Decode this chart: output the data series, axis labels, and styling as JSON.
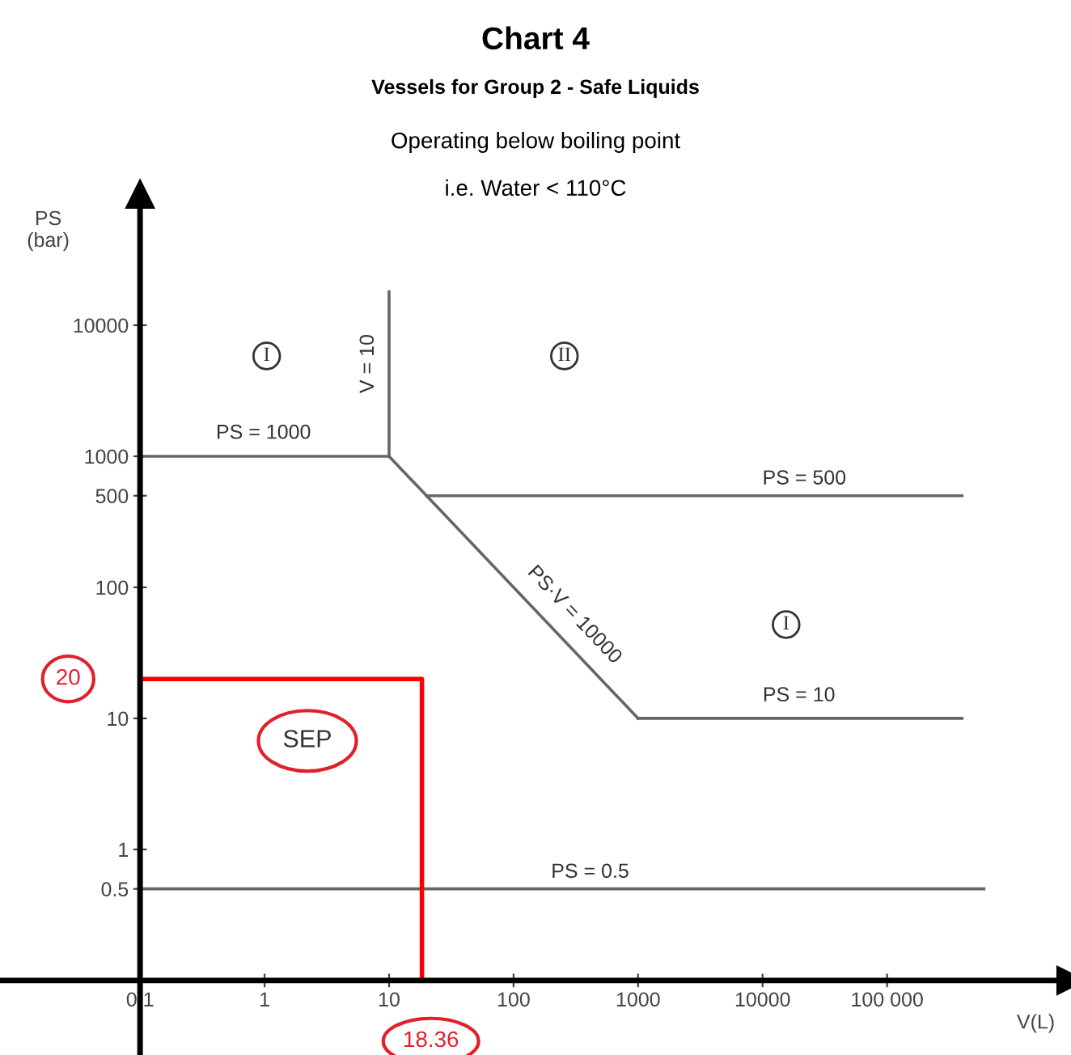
{
  "chart_data": {
    "type": "line",
    "title": "Chart 4",
    "subtitle": "Vessels for Group 2 - Safe Liquids",
    "xlabel": "V(L)",
    "ylabel": "PS\n(bar)",
    "log": "xy",
    "grid": false,
    "marker": "none",
    "line_style": "solid",
    "xlim": [
      0.0075,
      3000000
    ],
    "ylim": [
      0.027,
      100000
    ],
    "xticks": [
      0.1,
      1,
      10,
      100,
      1000,
      10000,
      {
        "value": 100000,
        "label": "100 000"
      }
    ],
    "yticks": [
      0.5,
      1,
      10,
      100,
      500,
      1000,
      10000
    ],
    "series": [
      {
        "color": "#666666",
        "x": [
          0.1,
          10
        ],
        "values": [
          1000,
          1000
        ]
      },
      {
        "color": "#666666",
        "x": [
          10,
          10
        ],
        "values": [
          1000,
          18000
        ]
      },
      {
        "color": "#666666",
        "x": [
          10,
          1000
        ],
        "values": [
          1000,
          10
        ]
      },
      {
        "color": "#666666",
        "x": [
          20,
          400000
        ],
        "values": [
          500,
          500
        ]
      },
      {
        "color": "#666666",
        "x": [
          1000,
          400000
        ],
        "values": [
          10,
          10
        ]
      },
      {
        "color": "#666666",
        "x": [
          0.1,
          600000
        ],
        "values": [
          0.5,
          0.5
        ]
      },
      {
        "color": "#ff0000",
        "x": [
          0.1,
          18.36,
          18.36
        ],
        "values": [
          20,
          20,
          0.1
        ]
      }
    ],
    "annotations": [
      "Operating below boiling point",
      "i.e. Water < 110°C",
      "PS = 1000",
      "V = 10",
      "I",
      "II",
      "PS = 500",
      "PS·V = 10000",
      "I",
      "PS = 10",
      "PS = 0.5",
      "SEP",
      {
        "text": "20",
        "x": 0.1,
        "y": 20
      },
      {
        "text": "18.36",
        "x": 18.36,
        "y": 0.1
      }
    ]
  }
}
